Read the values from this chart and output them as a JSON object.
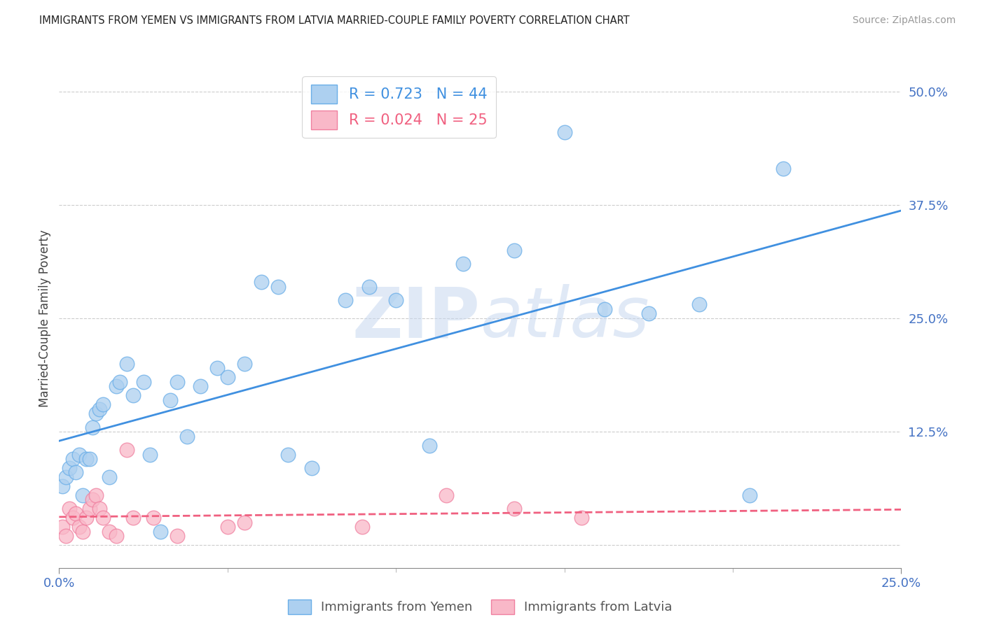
{
  "title": "IMMIGRANTS FROM YEMEN VS IMMIGRANTS FROM LATVIA MARRIED-COUPLE FAMILY POVERTY CORRELATION CHART",
  "source": "Source: ZipAtlas.com",
  "ylabel": "Married-Couple Family Poverty",
  "xlim": [
    0.0,
    0.25
  ],
  "ylim": [
    -0.025,
    0.525
  ],
  "yemen_color": "#ADD0F0",
  "latvia_color": "#F9B8C8",
  "yemen_edge_color": "#6aaee8",
  "latvia_edge_color": "#f080a0",
  "yemen_line_color": "#4090E0",
  "latvia_line_color": "#F06080",
  "R_yemen": 0.723,
  "N_yemen": 44,
  "R_latvia": 0.024,
  "N_latvia": 25,
  "legend_label_yemen": "Immigrants from Yemen",
  "legend_label_latvia": "Immigrants from Latvia",
  "watermark_zip": "ZIP",
  "watermark_atlas": "atlas",
  "yemen_x": [
    0.001,
    0.002,
    0.003,
    0.004,
    0.005,
    0.006,
    0.007,
    0.008,
    0.009,
    0.01,
    0.011,
    0.012,
    0.013,
    0.015,
    0.017,
    0.018,
    0.02,
    0.022,
    0.025,
    0.027,
    0.03,
    0.033,
    0.035,
    0.038,
    0.042,
    0.047,
    0.05,
    0.055,
    0.06,
    0.065,
    0.068,
    0.075,
    0.085,
    0.092,
    0.1,
    0.11,
    0.12,
    0.135,
    0.15,
    0.162,
    0.175,
    0.19,
    0.205,
    0.215
  ],
  "yemen_y": [
    0.065,
    0.075,
    0.085,
    0.095,
    0.08,
    0.1,
    0.055,
    0.095,
    0.095,
    0.13,
    0.145,
    0.15,
    0.155,
    0.075,
    0.175,
    0.18,
    0.2,
    0.165,
    0.18,
    0.1,
    0.015,
    0.16,
    0.18,
    0.12,
    0.175,
    0.195,
    0.185,
    0.2,
    0.29,
    0.285,
    0.1,
    0.085,
    0.27,
    0.285,
    0.27,
    0.11,
    0.31,
    0.325,
    0.455,
    0.26,
    0.255,
    0.265,
    0.055,
    0.415
  ],
  "latvia_x": [
    0.001,
    0.002,
    0.003,
    0.004,
    0.005,
    0.006,
    0.007,
    0.008,
    0.009,
    0.01,
    0.011,
    0.012,
    0.013,
    0.015,
    0.017,
    0.02,
    0.022,
    0.028,
    0.035,
    0.05,
    0.055,
    0.09,
    0.115,
    0.135,
    0.155
  ],
  "latvia_y": [
    0.02,
    0.01,
    0.04,
    0.03,
    0.035,
    0.02,
    0.015,
    0.03,
    0.04,
    0.05,
    0.055,
    0.04,
    0.03,
    0.015,
    0.01,
    0.105,
    0.03,
    0.03,
    0.01,
    0.02,
    0.025,
    0.02,
    0.055,
    0.04,
    0.03
  ],
  "yticks": [
    0.0,
    0.125,
    0.25,
    0.375,
    0.5
  ],
  "ytick_labels": [
    "",
    "12.5%",
    "25.0%",
    "37.5%",
    "50.0%"
  ],
  "xticks": [
    0.0,
    0.25
  ],
  "xtick_labels": [
    "0.0%",
    "25.0%"
  ]
}
